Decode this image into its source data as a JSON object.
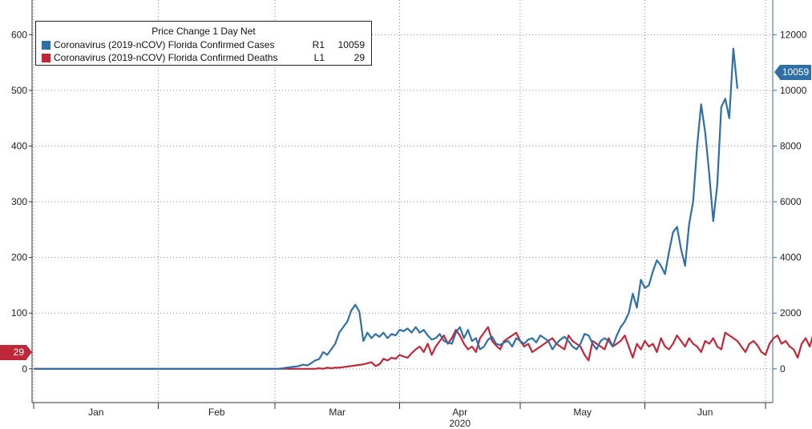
{
  "chart_data": {
    "type": "line",
    "title": "Price Change 1 Day Net",
    "year_label": "2020",
    "x_labels": [
      "Jan",
      "Feb",
      "Mar",
      "Apr",
      "May",
      "Jun"
    ],
    "y_left": {
      "ticks": [
        0,
        100,
        200,
        300,
        400,
        500,
        600
      ],
      "range": [
        -52,
        645
      ]
    },
    "y_right": {
      "ticks": [
        0,
        2000,
        4000,
        6000,
        8000,
        10000,
        12000
      ],
      "range": [
        -1040,
        12900
      ]
    },
    "grid": true,
    "legend_position": "top-left",
    "series": [
      {
        "name": "Coronavirus (2019-nCOV) Florida Confirmed Cases",
        "axis": "R1",
        "last_value": "10059",
        "color": "#2f6fa6",
        "start_date": "2020-01-01",
        "values": [
          0,
          0,
          0,
          0,
          0,
          0,
          0,
          0,
          0,
          0,
          0,
          0,
          0,
          0,
          0,
          0,
          0,
          0,
          0,
          0,
          0,
          0,
          0,
          0,
          0,
          0,
          0,
          0,
          0,
          0,
          0,
          0,
          0,
          0,
          0,
          0,
          0,
          0,
          0,
          0,
          0,
          0,
          0,
          0,
          0,
          0,
          0,
          0,
          0,
          0,
          0,
          0,
          0,
          0,
          0,
          0,
          0,
          0,
          0,
          0,
          0,
          0,
          20,
          40,
          60,
          80,
          100,
          150,
          120,
          200,
          300,
          350,
          600,
          500,
          700,
          900,
          1300,
          1500,
          1700,
          2100,
          2300,
          2050,
          1000,
          1300,
          1100,
          1250,
          1150,
          1300,
          1100,
          1250,
          1200,
          1400,
          1350,
          1450,
          1300,
          1500,
          1300,
          1400,
          1200,
          1050,
          1100,
          1250,
          1000,
          950,
          900,
          1300,
          1500,
          1100,
          1400,
          1000,
          1100,
          700,
          800,
          1050,
          1150,
          900,
          850,
          950,
          1000,
          800,
          1100,
          1000,
          900,
          1050,
          1100,
          950,
          1200,
          1100,
          1000,
          700,
          900,
          1050,
          1150,
          1000,
          800,
          700,
          900,
          1250,
          1200,
          900,
          700,
          1000,
          1100,
          1000,
          800,
          1200,
          1500,
          1700,
          2000,
          2700,
          2200,
          3200,
          2900,
          3000,
          3500,
          3900,
          3700,
          3400,
          4200,
          4900,
          5100,
          4300,
          3700,
          5200,
          6000,
          8000,
          9500,
          8500,
          7000,
          5300,
          6600,
          9400,
          9700,
          9000,
          11500,
          10059
        ]
      },
      {
        "name": "Coronavirus (2019-nCOV) Florida Confirmed Deaths",
        "axis": "L1",
        "last_value": "29",
        "color": "#c0283a",
        "start_date": "2020-01-01",
        "values": [
          0,
          0,
          0,
          0,
          0,
          0,
          0,
          0,
          0,
          0,
          0,
          0,
          0,
          0,
          0,
          0,
          0,
          0,
          0,
          0,
          0,
          0,
          0,
          0,
          0,
          0,
          0,
          0,
          0,
          0,
          0,
          0,
          0,
          0,
          0,
          0,
          0,
          0,
          0,
          0,
          0,
          0,
          0,
          0,
          0,
          0,
          0,
          0,
          0,
          0,
          0,
          0,
          0,
          0,
          0,
          0,
          0,
          0,
          0,
          0,
          0,
          0,
          0,
          0,
          0,
          0,
          0,
          0,
          0,
          0,
          0,
          1,
          0,
          2,
          1,
          2,
          2,
          3,
          4,
          5,
          6,
          7,
          8,
          10,
          12,
          5,
          8,
          18,
          15,
          20,
          18,
          25,
          22,
          20,
          28,
          35,
          40,
          30,
          45,
          25,
          40,
          50,
          60,
          45,
          55,
          70,
          60,
          45,
          35,
          40,
          30,
          55,
          65,
          75,
          50,
          42,
          35,
          50,
          55,
          60,
          65,
          50,
          40,
          45,
          30,
          35,
          40,
          45,
          50,
          55,
          45,
          40,
          35,
          60,
          50,
          45,
          40,
          25,
          15,
          50,
          45,
          40,
          35,
          55,
          40,
          45,
          50,
          60,
          40,
          20,
          45,
          35,
          50,
          40,
          45,
          30,
          55,
          40,
          35,
          45,
          60,
          50,
          40,
          55,
          45,
          40,
          30,
          50,
          45,
          55,
          40,
          35,
          65,
          60,
          55,
          50,
          40,
          30,
          45,
          50,
          42,
          30,
          25,
          45,
          55,
          60,
          45,
          50,
          40,
          35,
          20,
          45,
          55,
          40,
          65,
          60,
          30,
          29
        ]
      }
    ]
  }
}
